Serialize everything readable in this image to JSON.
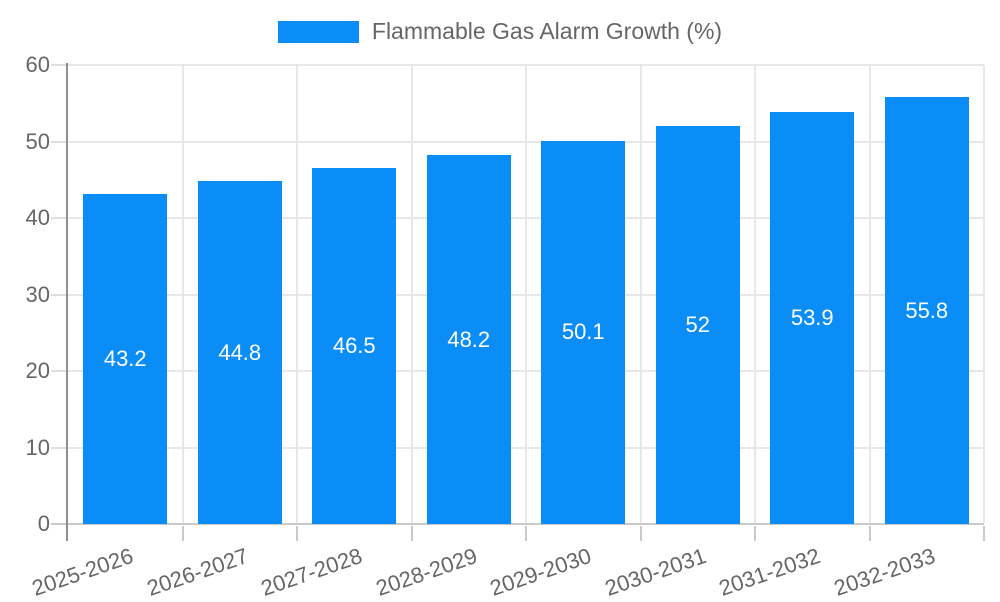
{
  "chart_data": {
    "type": "bar",
    "title": "Flammable Gas Alarm Growth (%)",
    "legend_label": "Flammable Gas Alarm Growth (%)",
    "legend_position": "top-center",
    "categories": [
      "2025-2026",
      "2026-2027",
      "2027-2028",
      "2028-2029",
      "2029-2030",
      "2030-2031",
      "2031-2032",
      "2032-2033"
    ],
    "values": [
      43.2,
      44.8,
      46.5,
      48.2,
      50.1,
      52,
      53.9,
      55.8
    ],
    "xlabel": "",
    "ylabel": "",
    "ylim": [
      0,
      60
    ],
    "yticks": [
      0,
      10,
      20,
      30,
      40,
      50,
      60
    ],
    "grid": true,
    "x_tick_rotation_deg": -19,
    "colors": {
      "bar": "#0b8df8",
      "value_label": "#ffffff",
      "axis_text": "#666666",
      "gridline": "#e7e7e7",
      "tick": "#dedede",
      "axis_line": "#8f8f8f",
      "baseline": "#c9c9c9",
      "background": "#ffffff"
    }
  }
}
